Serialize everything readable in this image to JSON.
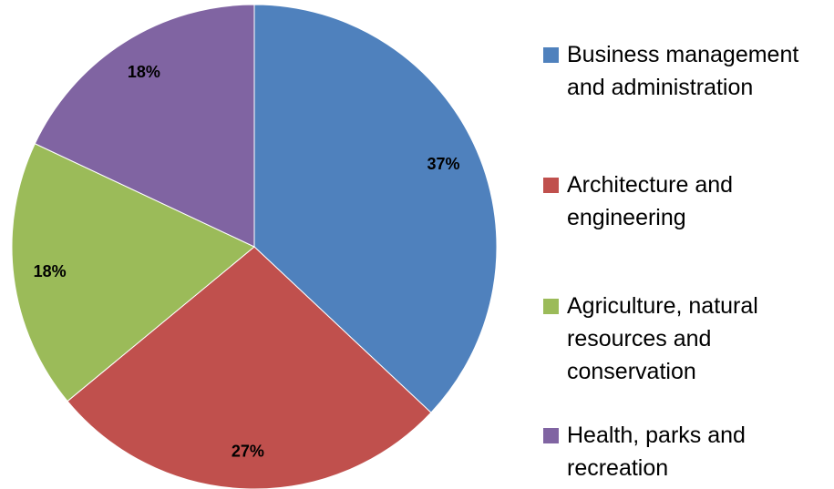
{
  "chart_data": {
    "type": "pie",
    "categories": [
      "Business management and administration",
      "Architecture and engineering",
      "Agriculture, natural resources and conservation",
      "Health, parks and recreation"
    ],
    "values": [
      37,
      27,
      18,
      18
    ],
    "value_labels": [
      "37%",
      "27%",
      "18%",
      "18%"
    ],
    "colors": [
      "#4f81bd",
      "#c0504d",
      "#9bbb59",
      "#8064a2"
    ],
    "legend": "right"
  }
}
